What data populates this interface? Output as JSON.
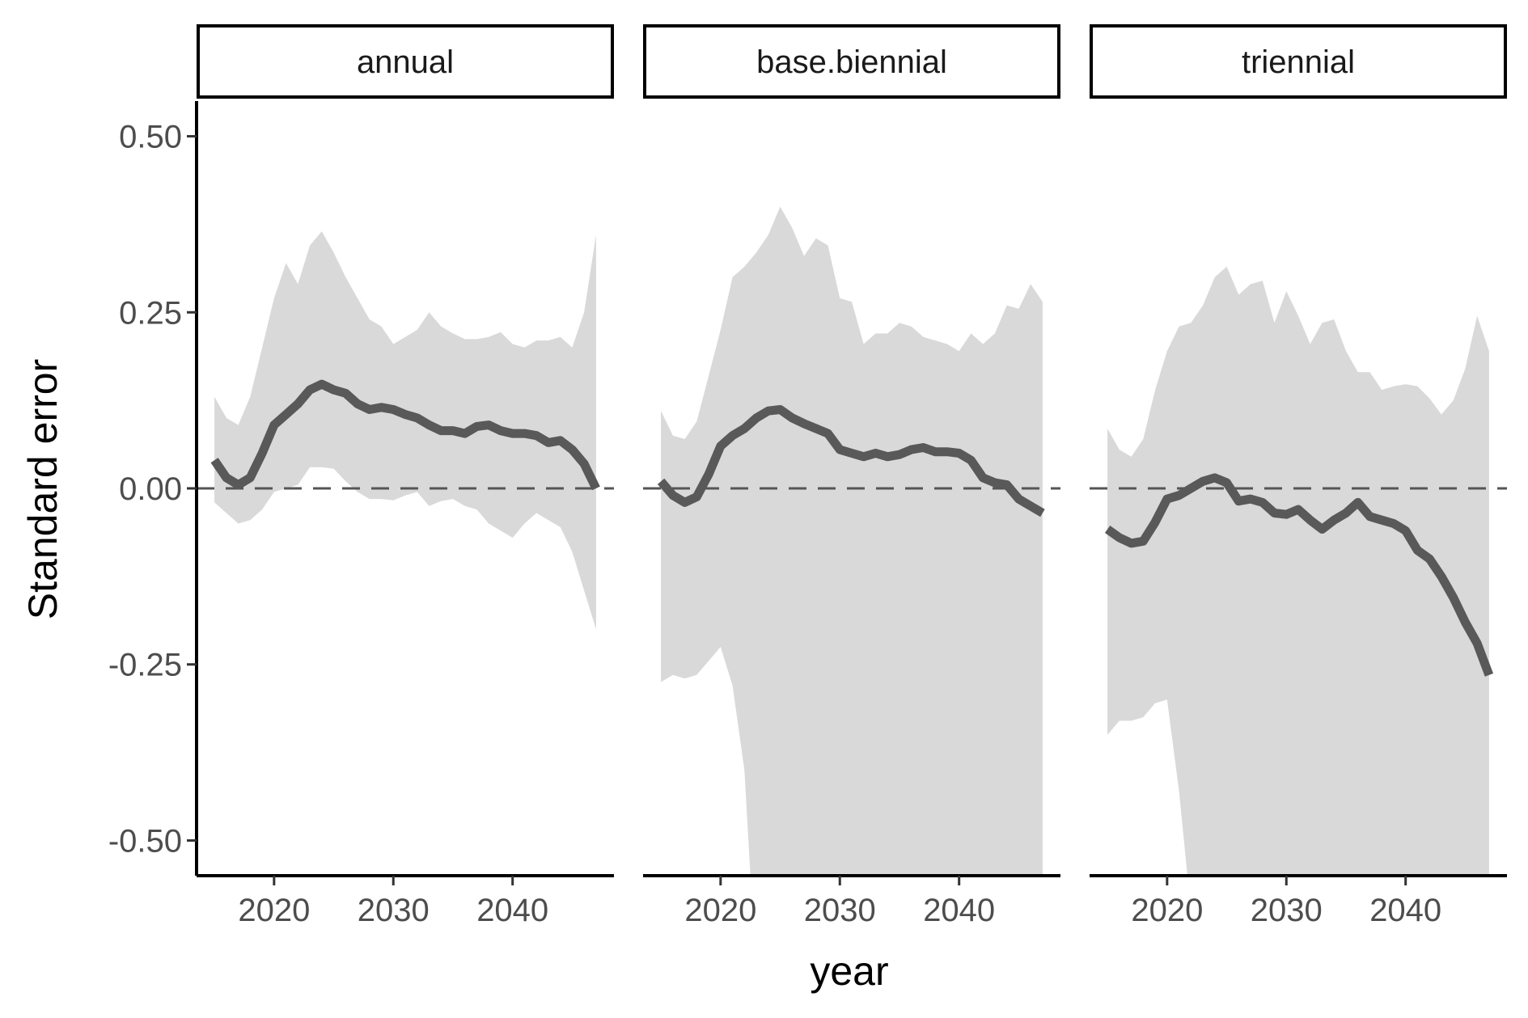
{
  "chart_data": {
    "type": "area",
    "ylabel": "Standard error",
    "xlabel": "year",
    "ylim": [
      -0.55,
      0.55
    ],
    "xlim": [
      2013.5,
      2048.5
    ],
    "yticks": [
      0.5,
      0.25,
      0.0,
      -0.25,
      -0.5
    ],
    "ytick_labels": [
      "0.50",
      "0.25",
      "0.00",
      "-0.25",
      "-0.50"
    ],
    "xticks": [
      2020,
      2030,
      2040
    ],
    "xtick_labels": [
      "2020",
      "2030",
      "2040"
    ],
    "reference_line": 0,
    "colors": {
      "line": "#595959",
      "ribbon": "#d9d9d9",
      "reference": "#555555"
    },
    "panels": [
      {
        "label": "annual",
        "x": [
          2015,
          2016,
          2017,
          2018,
          2019,
          2020,
          2021,
          2022,
          2023,
          2024,
          2025,
          2026,
          2027,
          2028,
          2029,
          2030,
          2031,
          2032,
          2033,
          2034,
          2035,
          2036,
          2037,
          2038,
          2039,
          2040,
          2041,
          2042,
          2043,
          2044,
          2045,
          2046,
          2047
        ],
        "y": [
          0.04,
          0.015,
          0.005,
          0.015,
          0.05,
          0.09,
          0.105,
          0.12,
          0.14,
          0.148,
          0.14,
          0.135,
          0.12,
          0.112,
          0.115,
          0.112,
          0.105,
          0.1,
          0.09,
          0.082,
          0.082,
          0.078,
          0.088,
          0.09,
          0.082,
          0.078,
          0.078,
          0.075,
          0.065,
          0.068,
          0.055,
          0.035,
          0.0
        ],
        "upper": [
          0.13,
          0.1,
          0.09,
          0.13,
          0.2,
          0.27,
          0.32,
          0.29,
          0.345,
          0.365,
          0.335,
          0.3,
          0.27,
          0.24,
          0.23,
          0.205,
          0.215,
          0.225,
          0.25,
          0.23,
          0.22,
          0.212,
          0.212,
          0.215,
          0.222,
          0.205,
          0.2,
          0.21,
          0.21,
          0.215,
          0.2,
          0.25,
          0.36
        ],
        "lower": [
          -0.02,
          -0.035,
          -0.05,
          -0.045,
          -0.03,
          -0.005,
          0.0,
          0.005,
          0.03,
          0.03,
          0.028,
          0.01,
          -0.005,
          -0.015,
          -0.015,
          -0.017,
          -0.01,
          -0.005,
          -0.025,
          -0.018,
          -0.015,
          -0.025,
          -0.03,
          -0.05,
          -0.06,
          -0.07,
          -0.05,
          -0.035,
          -0.045,
          -0.055,
          -0.09,
          -0.145,
          -0.2
        ]
      },
      {
        "label": "base.biennial",
        "x": [
          2015,
          2016,
          2017,
          2018,
          2019,
          2020,
          2021,
          2022,
          2023,
          2024,
          2025,
          2026,
          2027,
          2028,
          2029,
          2030,
          2031,
          2032,
          2033,
          2034,
          2035,
          2036,
          2037,
          2038,
          2039,
          2040,
          2041,
          2042,
          2043,
          2044,
          2045,
          2046,
          2047
        ],
        "y": [
          0.01,
          -0.01,
          -0.02,
          -0.012,
          0.02,
          0.06,
          0.075,
          0.085,
          0.1,
          0.11,
          0.112,
          0.1,
          0.092,
          0.085,
          0.078,
          0.055,
          0.05,
          0.045,
          0.05,
          0.045,
          0.048,
          0.055,
          0.058,
          0.052,
          0.052,
          0.05,
          0.04,
          0.015,
          0.008,
          0.005,
          -0.015,
          -0.025,
          -0.035
        ],
        "upper": [
          0.11,
          0.075,
          0.07,
          0.095,
          0.16,
          0.225,
          0.3,
          0.315,
          0.335,
          0.36,
          0.4,
          0.37,
          0.33,
          0.355,
          0.345,
          0.27,
          0.265,
          0.205,
          0.22,
          0.22,
          0.235,
          0.23,
          0.215,
          0.21,
          0.205,
          0.195,
          0.22,
          0.205,
          0.22,
          0.26,
          0.255,
          0.29,
          0.265
        ],
        "lower": [
          -0.275,
          -0.265,
          -0.27,
          -0.265,
          -0.245,
          -0.225,
          -0.28,
          -0.4,
          -0.7,
          -0.8,
          -0.8,
          -0.8,
          -0.8,
          -0.8,
          -0.8,
          -0.8,
          -0.8,
          -0.8,
          -0.8,
          -0.8,
          -0.8,
          -0.8,
          -0.8,
          -0.8,
          -0.8,
          -0.8,
          -0.8,
          -0.8,
          -0.8,
          -0.8,
          -0.8,
          -0.8,
          -0.8
        ]
      },
      {
        "label": "triennial",
        "x": [
          2015,
          2016,
          2017,
          2018,
          2019,
          2020,
          2021,
          2022,
          2023,
          2024,
          2025,
          2026,
          2027,
          2028,
          2029,
          2030,
          2031,
          2032,
          2033,
          2034,
          2035,
          2036,
          2037,
          2038,
          2039,
          2040,
          2041,
          2042,
          2043,
          2044,
          2045,
          2046,
          2047
        ],
        "y": [
          -0.058,
          -0.07,
          -0.078,
          -0.075,
          -0.048,
          -0.015,
          -0.01,
          0.0,
          0.01,
          0.015,
          0.008,
          -0.018,
          -0.015,
          -0.02,
          -0.035,
          -0.037,
          -0.03,
          -0.045,
          -0.058,
          -0.045,
          -0.035,
          -0.02,
          -0.04,
          -0.045,
          -0.05,
          -0.06,
          -0.088,
          -0.1,
          -0.125,
          -0.155,
          -0.19,
          -0.22,
          -0.265
        ],
        "upper": [
          0.085,
          0.055,
          0.045,
          0.07,
          0.14,
          0.195,
          0.23,
          0.235,
          0.26,
          0.3,
          0.315,
          0.275,
          0.29,
          0.295,
          0.235,
          0.28,
          0.245,
          0.205,
          0.235,
          0.24,
          0.195,
          0.165,
          0.165,
          0.14,
          0.145,
          0.148,
          0.145,
          0.128,
          0.105,
          0.125,
          0.17,
          0.245,
          0.195
        ],
        "lower": [
          -0.35,
          -0.33,
          -0.33,
          -0.325,
          -0.305,
          -0.3,
          -0.43,
          -0.6,
          -0.8,
          -0.8,
          -0.8,
          -0.8,
          -0.8,
          -0.8,
          -0.8,
          -0.8,
          -0.8,
          -0.8,
          -0.8,
          -0.8,
          -0.8,
          -0.8,
          -0.8,
          -0.8,
          -0.8,
          -0.8,
          -0.8,
          -0.8,
          -0.8,
          -0.8,
          -0.8,
          -0.8,
          -0.8
        ]
      }
    ]
  }
}
